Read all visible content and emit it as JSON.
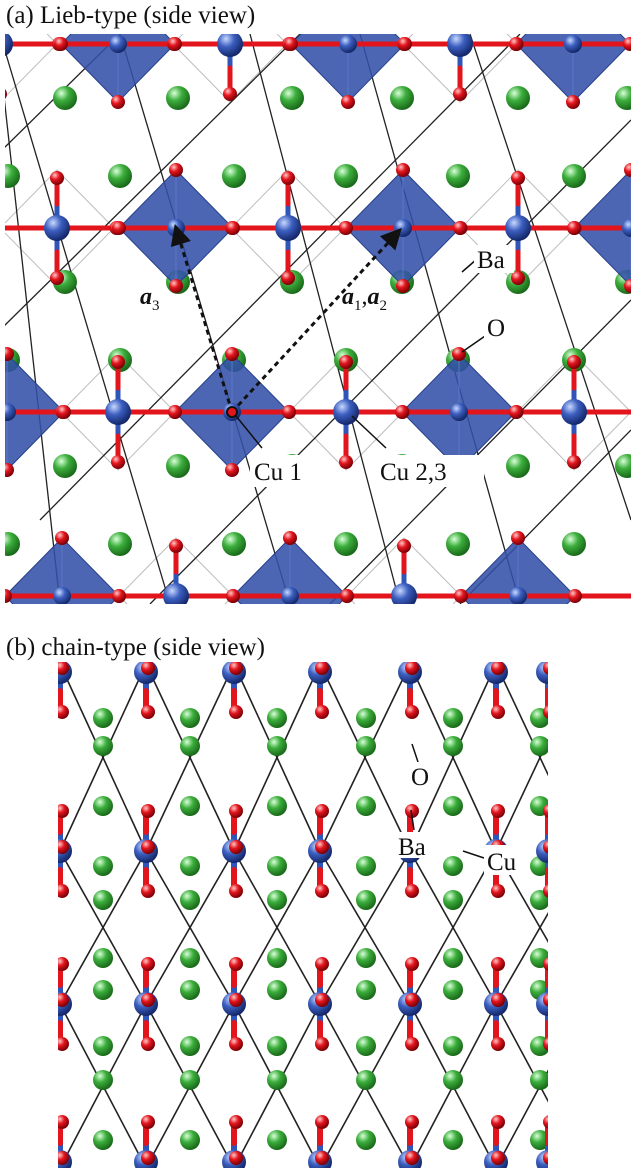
{
  "panel_a": {
    "title": "(a) Lieb-type (side view)",
    "labels": {
      "ba": "Ba",
      "o": "O",
      "cu1": "Cu 1",
      "cu23": "Cu 2,3",
      "a3": "a",
      "a3_sub": "3",
      "a12_first": "a",
      "a12_first_sub": "1",
      "a12_comma": ",",
      "a12_second": "a",
      "a12_second_sub": "2"
    }
  },
  "panel_b": {
    "title": "(b) chain-type (side view)",
    "labels": {
      "o": "O",
      "ba": "Ba",
      "cu": "Cu"
    }
  },
  "colors": {
    "cu_atom": "#2d4fa8",
    "o_atom": "#e2141c",
    "ba_atom": "#3daa3d",
    "octahedron": "#3451a8",
    "cell_line": "#222222"
  }
}
